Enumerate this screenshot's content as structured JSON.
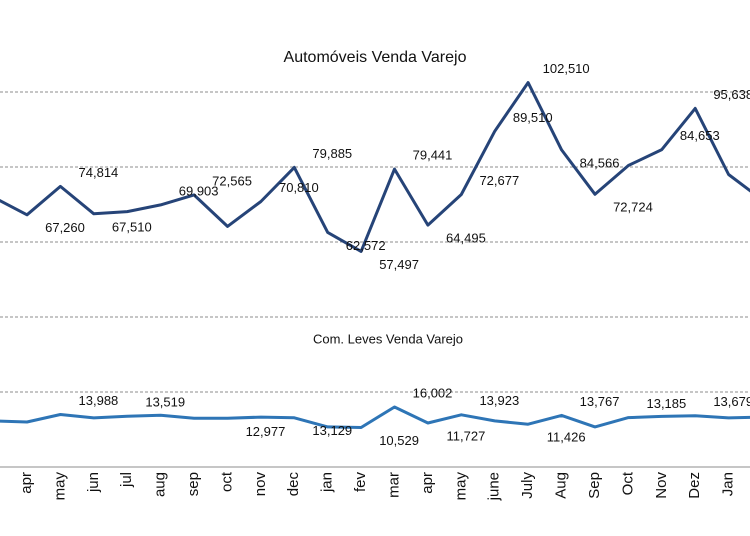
{
  "chart_data": {
    "type": "line",
    "title": "Automóveis Venda Varejo",
    "subtitle": "Com. Leves Venda Varejo",
    "categories": [
      null,
      "apr",
      "may",
      "jun",
      "jul",
      "aug",
      "sep",
      "oct",
      "nov",
      "dec",
      "jan",
      "fev",
      "mar",
      "apr",
      "may",
      "june",
      "July",
      "Aug",
      "Sep",
      "Oct",
      "Nov",
      "Dez",
      "Jan",
      null
    ],
    "series": [
      {
        "name": "Automóveis Venda Varejo",
        "color": "#264478",
        "values": [
          71900,
          67260,
          74814,
          67510,
          68100,
          69903,
          72565,
          64150,
          70810,
          79885,
          62572,
          57497,
          79441,
          64495,
          72677,
          89510,
          102510,
          84566,
          72724,
          80400,
          84653,
          95638,
          78000,
          71300
        ],
        "value_labels": [
          null,
          "67,260",
          "74,814",
          "67,510",
          null,
          "69,903",
          "72,565",
          null,
          "70,810",
          "79,885",
          "62,572",
          "57,497",
          "79,441",
          "64,495",
          "72,677",
          "89,510",
          "102,510",
          "84,566",
          "72,724",
          null,
          "84,653",
          "95,638",
          null,
          null
        ]
      },
      {
        "name": "Com. Leves Venda Varejo",
        "color": "#2E75B6",
        "values": [
          12300,
          12000,
          13988,
          13100,
          13519,
          13800,
          13000,
          12977,
          13300,
          13129,
          10700,
          10529,
          16002,
          11727,
          13923,
          12300,
          11426,
          13767,
          10700,
          13185,
          13500,
          13679,
          13100,
          13300
        ],
        "value_labels": [
          null,
          null,
          "13,988",
          null,
          "13,519",
          null,
          null,
          "12,977",
          null,
          "13,129",
          null,
          "10,529",
          "16,002",
          "11,727",
          "13,923",
          null,
          "11,426",
          "13,767",
          null,
          "13,185",
          null,
          "13,679",
          null,
          null
        ]
      }
    ],
    "ylim": [
      0,
      120000
    ],
    "yticks": [
      20000,
      40000,
      60000,
      80000,
      100000
    ],
    "grid": true
  }
}
